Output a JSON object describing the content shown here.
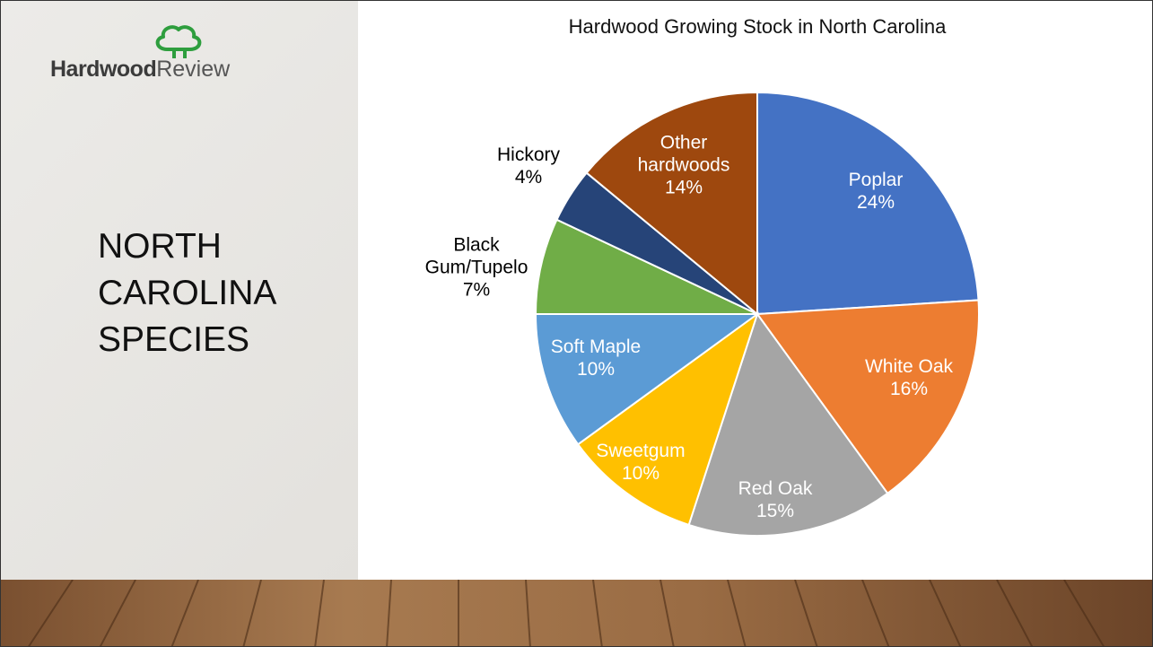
{
  "logo": {
    "brand": "Hardwood",
    "suffix": "Review"
  },
  "slide_title": "NORTH CAROLINA SPECIES",
  "chart_data": {
    "type": "pie",
    "title": "Hardwood Growing Stock in North Carolina",
    "categories": [
      "Poplar",
      "White Oak",
      "Red Oak",
      "Sweetgum",
      "Soft Maple",
      "Black Gum/Tupelo",
      "Hickory",
      "Other hardwoods"
    ],
    "values": [
      24,
      16,
      15,
      10,
      10,
      7,
      4,
      14
    ],
    "value_labels": [
      "24%",
      "16%",
      "15%",
      "10%",
      "10%",
      "7%",
      "4%",
      "14%"
    ],
    "colors": [
      "#4472c4",
      "#ed7d31",
      "#a5a5a5",
      "#ffc000",
      "#5b9bd5",
      "#70ad47",
      "#264478",
      "#9e480e"
    ]
  }
}
